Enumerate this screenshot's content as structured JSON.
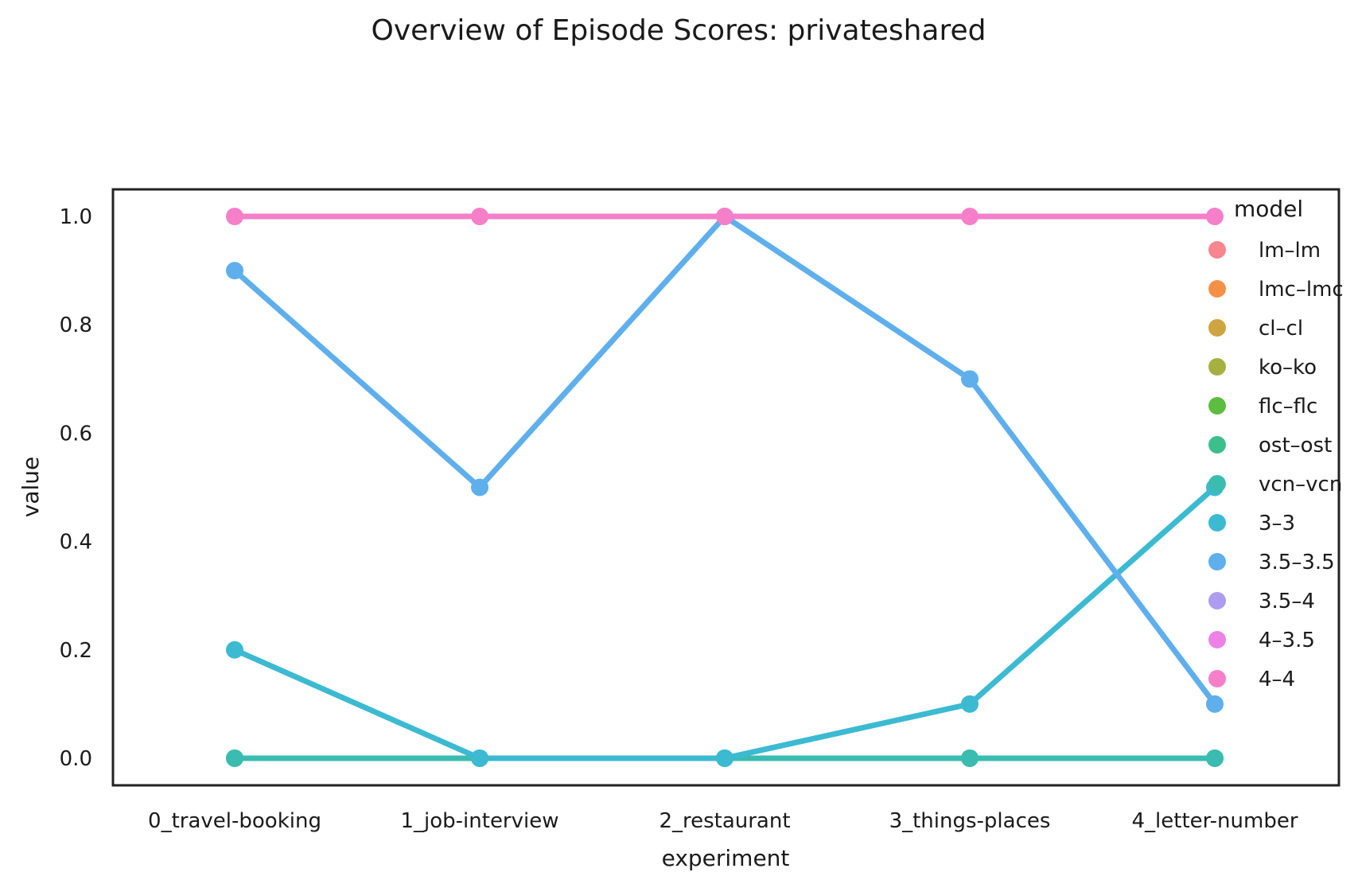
{
  "chart_data": {
    "type": "line",
    "title": "Overview of Episode Scores: privateshared",
    "xlabel": "experiment",
    "ylabel": "value",
    "categories": [
      "0_travel-booking",
      "1_job-interview",
      "2_restaurant",
      "3_things-places",
      "4_letter-number"
    ],
    "ylim": [
      -0.05,
      1.05
    ],
    "yticks": [
      0.0,
      0.2,
      0.4,
      0.6,
      0.8,
      1.0
    ],
    "ytick_labels": [
      "0.0",
      "0.2",
      "0.4",
      "0.6",
      "0.8",
      "1.0"
    ],
    "grid": false,
    "legend": {
      "title": "model",
      "placement": "top-right",
      "entries": [
        {
          "name": "lm–lm",
          "color": "#f7868d"
        },
        {
          "name": "lmc–lmc",
          "color": "#f59146"
        },
        {
          "name": "cl–cl",
          "color": "#cda440"
        },
        {
          "name": "ko–ko",
          "color": "#a6b040"
        },
        {
          "name": "flc–flc",
          "color": "#5cbd3f"
        },
        {
          "name": "ost–ost",
          "color": "#3dbf8d"
        },
        {
          "name": "vcn–vcn",
          "color": "#3bbcb0"
        },
        {
          "name": "3–3",
          "color": "#3cbad1"
        },
        {
          "name": "3.5–3.5",
          "color": "#5eafec"
        },
        {
          "name": "3.5–4",
          "color": "#ad9cf0"
        },
        {
          "name": "4–3.5",
          "color": "#ec82e8"
        },
        {
          "name": "4–4",
          "color": "#f57fc8"
        }
      ]
    },
    "series": [
      {
        "key": "ost",
        "color": "#3dbf8d",
        "values": [
          0.0,
          0.0,
          0.0,
          0.0,
          0.0
        ]
      },
      {
        "key": "vcn",
        "color": "#3bbcb0",
        "values": [
          0.0,
          0.0,
          0.0,
          0.0,
          0.0
        ]
      },
      {
        "key": "3-3",
        "color": "#3cbad1",
        "values": [
          0.2,
          0.0,
          0.0,
          0.1,
          0.5
        ]
      },
      {
        "key": "3.5-3.5",
        "color": "#5eafec",
        "values": [
          0.9,
          0.5,
          1.0,
          0.7,
          0.1
        ]
      },
      {
        "key": "4-4",
        "color": "#f57fc8",
        "values": [
          1.0,
          1.0,
          1.0,
          1.0,
          1.0
        ]
      }
    ]
  }
}
